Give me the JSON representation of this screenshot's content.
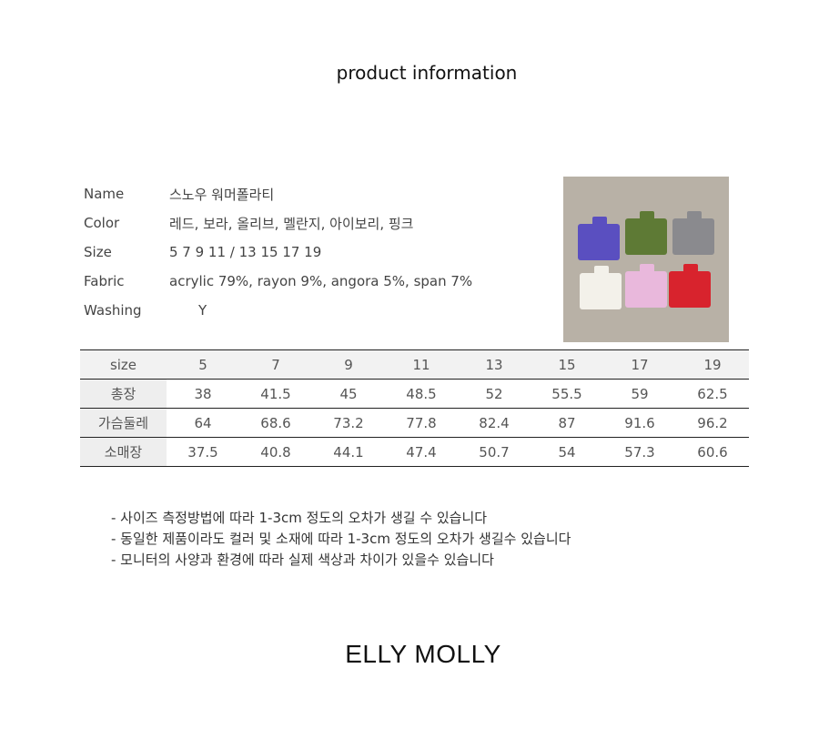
{
  "title": "product information",
  "info": [
    {
      "label": "Name",
      "value": "스노우 워머폴라티"
    },
    {
      "label": "Color",
      "value": "레드, 보라, 올리브, 멜란지, 아이보리, 핑크"
    },
    {
      "label": "Size",
      "value": "5 7 9 11  / 13 15 17 19"
    },
    {
      "label": "Fabric",
      "value": "acrylic 79%, rayon 9%, angora 5%, span 7%"
    },
    {
      "label": "Washing",
      "value": "Y"
    }
  ],
  "photo": {
    "sweater_colors": [
      "#5a4fc0",
      "#5e7a35",
      "#8a8a8e",
      "#f3f1ea",
      "#e9b8dc",
      "#d8232d"
    ]
  },
  "size_table": {
    "header": [
      "size",
      "5",
      "7",
      "9",
      "11",
      "13",
      "15",
      "17",
      "19"
    ],
    "rows": [
      [
        "총장",
        "38",
        "41.5",
        "45",
        "48.5",
        "52",
        "55.5",
        "59",
        "62.5"
      ],
      [
        "가슴둘레",
        "64",
        "68.6",
        "73.2",
        "77.8",
        "82.4",
        "87",
        "91.6",
        "96.2"
      ],
      [
        "소매장",
        "37.5",
        "40.8",
        "44.1",
        "47.4",
        "50.7",
        "54",
        "57.3",
        "60.6"
      ]
    ]
  },
  "notes": [
    "- 사이즈 측정방법에 따라 1-3cm 정도의 오차가 생길 수 있습니다",
    "- 동일한 제품이라도 컬러 및 소재에 따라 1-3cm 정도의 오차가 생길수 있습니다",
    "- 모니터의 사양과 환경에 따라 실제 색상과 차이가 있을수 있습니다"
  ],
  "brand": "ELLY MOLLY"
}
